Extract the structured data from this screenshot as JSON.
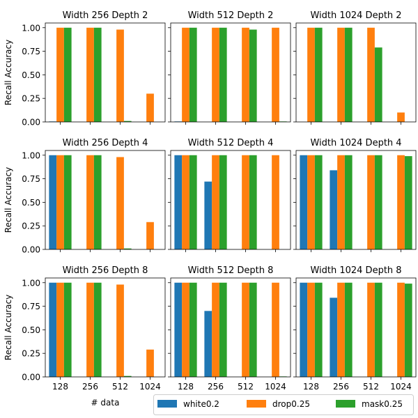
{
  "chart_data": {
    "type": "bar",
    "categories": [
      "128",
      "256",
      "512",
      "1024"
    ],
    "ylabel": "Recall Accuracy",
    "xlabel": "# data",
    "ylim": [
      0,
      1.05
    ],
    "yticks": [
      "0.00",
      "0.25",
      "0.50",
      "0.75",
      "1.00"
    ],
    "legend": {
      "placement": "bottom-right",
      "entries": [
        {
          "name": "white0.2",
          "color": "#1f77b4"
        },
        {
          "name": "drop0.25",
          "color": "#ff7f0e"
        },
        {
          "name": "mask0.25",
          "color": "#2ca02c"
        }
      ]
    },
    "panels": [
      {
        "title": "Width 256 Depth 2",
        "series": [
          {
            "name": "white0.2",
            "values": [
              0.005,
              0.0,
              0.0,
              0.0
            ]
          },
          {
            "name": "drop0.25",
            "values": [
              1.0,
              1.0,
              0.98,
              0.3
            ]
          },
          {
            "name": "mask0.25",
            "values": [
              1.0,
              1.0,
              0.01,
              0.0
            ]
          }
        ]
      },
      {
        "title": "Width 512 Depth 2",
        "series": [
          {
            "name": "white0.2",
            "values": [
              0.005,
              0.0,
              0.0,
              0.0
            ]
          },
          {
            "name": "drop0.25",
            "values": [
              1.0,
              1.0,
              1.0,
              1.0
            ]
          },
          {
            "name": "mask0.25",
            "values": [
              1.0,
              1.0,
              0.98,
              0.005
            ]
          }
        ]
      },
      {
        "title": "Width 1024 Depth 2",
        "series": [
          {
            "name": "white0.2",
            "values": [
              0.0,
              0.0,
              0.0,
              0.0
            ]
          },
          {
            "name": "drop0.25",
            "values": [
              1.0,
              1.0,
              1.0,
              0.1
            ]
          },
          {
            "name": "mask0.25",
            "values": [
              1.0,
              1.0,
              0.79,
              0.0
            ]
          }
        ]
      },
      {
        "title": "Width 256 Depth 4",
        "series": [
          {
            "name": "white0.2",
            "values": [
              1.0,
              0.0,
              0.0,
              0.0
            ]
          },
          {
            "name": "drop0.25",
            "values": [
              1.0,
              1.0,
              0.98,
              0.29
            ]
          },
          {
            "name": "mask0.25",
            "values": [
              1.0,
              1.0,
              0.01,
              0.0
            ]
          }
        ]
      },
      {
        "title": "Width 512 Depth 4",
        "series": [
          {
            "name": "white0.2",
            "values": [
              1.0,
              0.72,
              0.0,
              0.0
            ]
          },
          {
            "name": "drop0.25",
            "values": [
              1.0,
              1.0,
              1.0,
              1.0
            ]
          },
          {
            "name": "mask0.25",
            "values": [
              1.0,
              1.0,
              1.0,
              0.0
            ]
          }
        ]
      },
      {
        "title": "Width 1024 Depth 4",
        "series": [
          {
            "name": "white0.2",
            "values": [
              1.0,
              0.84,
              0.0,
              0.0
            ]
          },
          {
            "name": "drop0.25",
            "values": [
              1.0,
              1.0,
              1.0,
              1.0
            ]
          },
          {
            "name": "mask0.25",
            "values": [
              1.0,
              1.0,
              1.0,
              0.99
            ]
          }
        ]
      },
      {
        "title": "Width 256 Depth 8",
        "series": [
          {
            "name": "white0.2",
            "values": [
              1.0,
              0.0,
              0.0,
              0.0
            ]
          },
          {
            "name": "drop0.25",
            "values": [
              1.0,
              1.0,
              0.98,
              0.29
            ]
          },
          {
            "name": "mask0.25",
            "values": [
              1.0,
              1.0,
              0.01,
              0.0
            ]
          }
        ]
      },
      {
        "title": "Width 512 Depth 8",
        "series": [
          {
            "name": "white0.2",
            "values": [
              1.0,
              0.7,
              0.0,
              0.0
            ]
          },
          {
            "name": "drop0.25",
            "values": [
              1.0,
              1.0,
              1.0,
              1.0
            ]
          },
          {
            "name": "mask0.25",
            "values": [
              1.0,
              1.0,
              1.0,
              0.005
            ]
          }
        ]
      },
      {
        "title": "Width 1024 Depth 8",
        "series": [
          {
            "name": "white0.2",
            "values": [
              1.0,
              0.84,
              0.0,
              0.0
            ]
          },
          {
            "name": "drop0.25",
            "values": [
              1.0,
              1.0,
              1.0,
              1.0
            ]
          },
          {
            "name": "mask0.25",
            "values": [
              1.0,
              1.0,
              1.0,
              0.99
            ]
          }
        ]
      }
    ]
  }
}
